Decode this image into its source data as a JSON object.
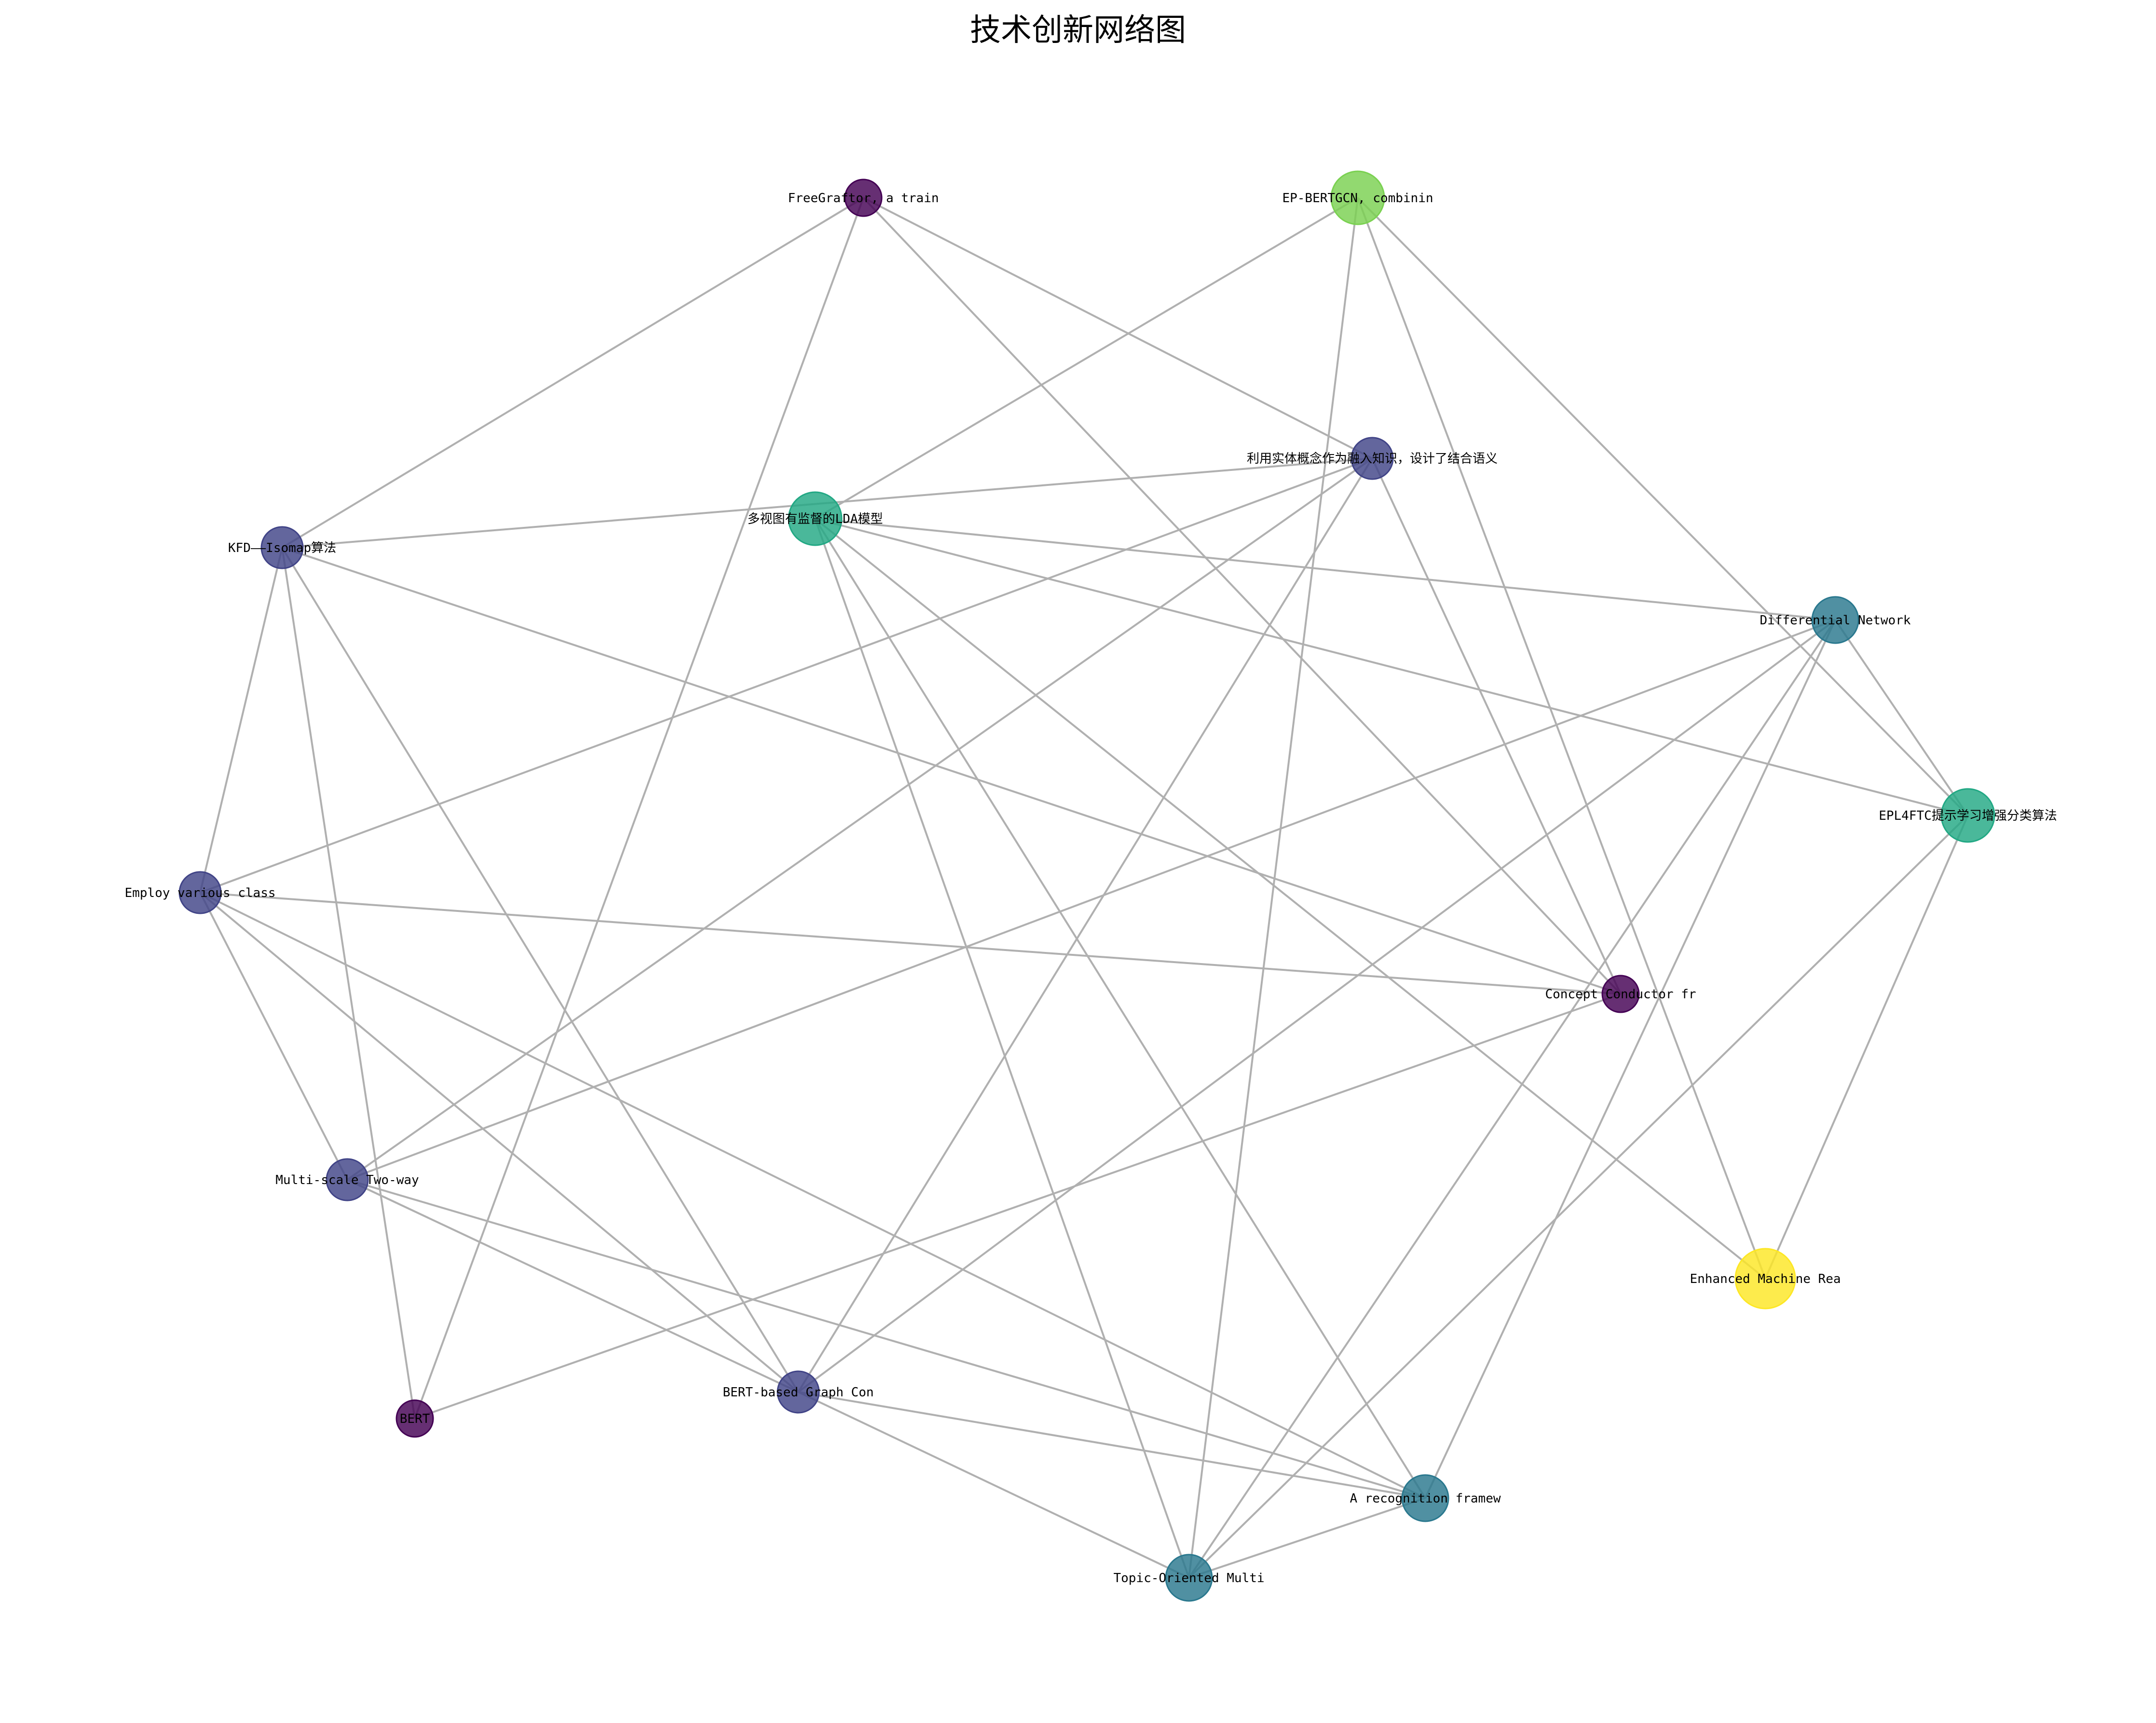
{
  "title": "技术创新网络图",
  "nodes": [
    {
      "id": "freegraftor",
      "label": "FreeGraftor, a train",
      "color": "#440154"
    },
    {
      "id": "ep-bertgcn",
      "label": "EP-BERTGCN, combinin",
      "color": "#7ad151"
    },
    {
      "id": "entity-concept",
      "label": "利用实体概念作为融入知识，设计了结合语义",
      "color": "#414487"
    },
    {
      "id": "multiview-lda",
      "label": "多视图有监督的LDA模型",
      "color": "#22a884"
    },
    {
      "id": "kfd-isomap",
      "label": "KFD——Isomap算法",
      "color": "#414487"
    },
    {
      "id": "differential-network",
      "label": "Differential Network",
      "color": "#2a788e"
    },
    {
      "id": "epl4ftc",
      "label": "EPL4FTC提示学习增强分类算法",
      "color": "#22a884"
    },
    {
      "id": "employ-various",
      "label": "Employ various class",
      "color": "#414487"
    },
    {
      "id": "concept-conductor",
      "label": "Concept Conductor fr",
      "color": "#440154"
    },
    {
      "id": "multi-scale",
      "label": "Multi-scale Two-way",
      "color": "#414487"
    },
    {
      "id": "enhanced-machine",
      "label": "Enhanced Machine Rea",
      "color": "#fde725"
    },
    {
      "id": "bert",
      "label": "BERT",
      "color": "#440154"
    },
    {
      "id": "bert-graph",
      "label": "BERT-based Graph Con",
      "color": "#414487"
    },
    {
      "id": "recognition",
      "label": "A recognition framew",
      "color": "#2a788e"
    },
    {
      "id": "topic-oriented",
      "label": "Topic-Oriented Multi",
      "color": "#2a788e"
    }
  ],
  "edges": [
    [
      "freegraftor",
      "kfd-isomap"
    ],
    [
      "freegraftor",
      "entity-concept"
    ],
    [
      "freegraftor",
      "concept-conductor"
    ],
    [
      "freegraftor",
      "bert"
    ],
    [
      "ep-bertgcn",
      "multiview-lda"
    ],
    [
      "ep-bertgcn",
      "epl4ftc"
    ],
    [
      "ep-bertgcn",
      "enhanced-machine"
    ],
    [
      "ep-bertgcn",
      "topic-oriented"
    ],
    [
      "entity-concept",
      "kfd-isomap"
    ],
    [
      "entity-concept",
      "employ-various"
    ],
    [
      "entity-concept",
      "concept-conductor"
    ],
    [
      "entity-concept",
      "multi-scale"
    ],
    [
      "entity-concept",
      "bert-graph"
    ],
    [
      "multiview-lda",
      "differential-network"
    ],
    [
      "multiview-lda",
      "epl4ftc"
    ],
    [
      "multiview-lda",
      "enhanced-machine"
    ],
    [
      "multiview-lda",
      "recognition"
    ],
    [
      "multiview-lda",
      "topic-oriented"
    ],
    [
      "kfd-isomap",
      "employ-various"
    ],
    [
      "kfd-isomap",
      "concept-conductor"
    ],
    [
      "kfd-isomap",
      "bert"
    ],
    [
      "kfd-isomap",
      "bert-graph"
    ],
    [
      "differential-network",
      "epl4ftc"
    ],
    [
      "differential-network",
      "multi-scale"
    ],
    [
      "differential-network",
      "bert-graph"
    ],
    [
      "differential-network",
      "recognition"
    ],
    [
      "differential-network",
      "topic-oriented"
    ],
    [
      "epl4ftc",
      "enhanced-machine"
    ],
    [
      "epl4ftc",
      "topic-oriented"
    ],
    [
      "employ-various",
      "concept-conductor"
    ],
    [
      "employ-various",
      "multi-scale"
    ],
    [
      "employ-various",
      "bert-graph"
    ],
    [
      "employ-various",
      "recognition"
    ],
    [
      "concept-conductor",
      "bert"
    ],
    [
      "multi-scale",
      "bert-graph"
    ],
    [
      "multi-scale",
      "recognition"
    ],
    [
      "bert-graph",
      "recognition"
    ],
    [
      "bert-graph",
      "topic-oriented"
    ],
    [
      "recognition",
      "topic-oriented"
    ]
  ]
}
